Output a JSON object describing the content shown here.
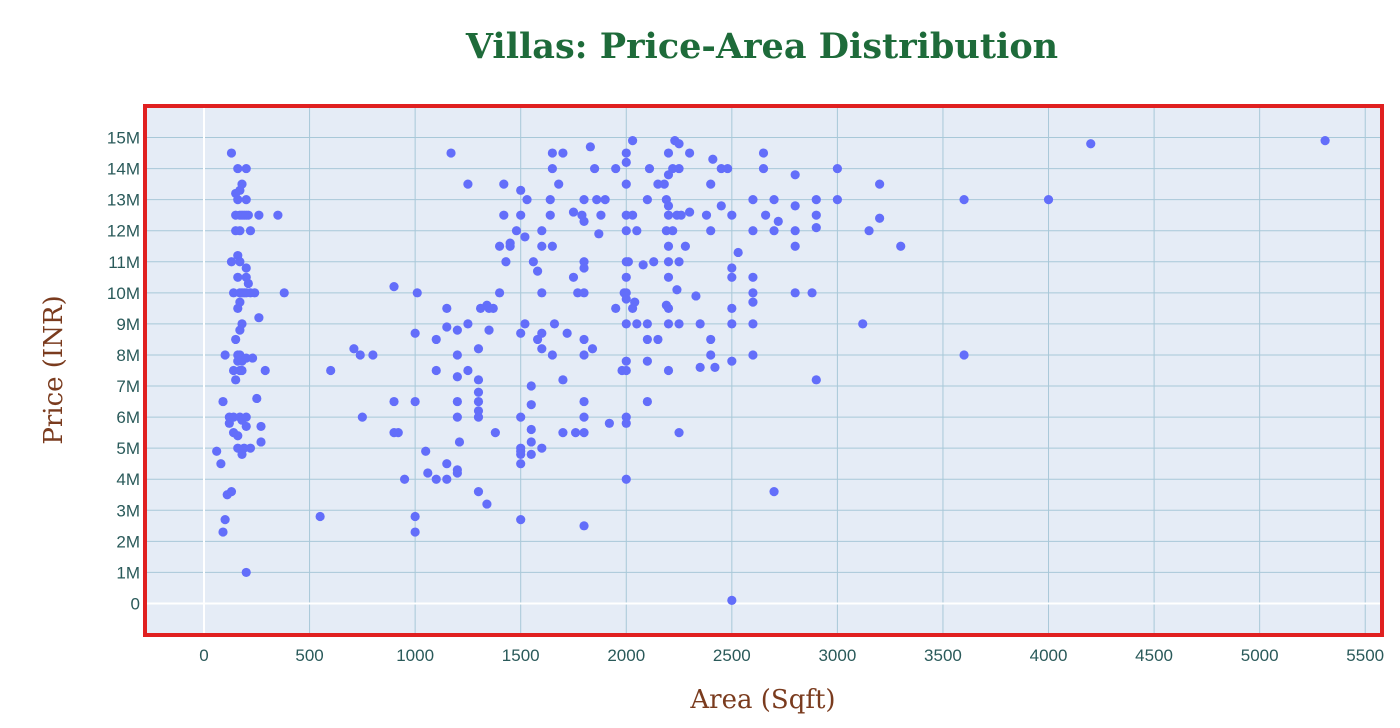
{
  "chart_data": {
    "type": "scatter",
    "title": "Villas: Price-Area Distribution",
    "xlabel": "Area (Sqft)",
    "ylabel": "Price (INR)",
    "xlim": [
      -270,
      5570
    ],
    "ylim": [
      -950000,
      15950000
    ],
    "grid": true,
    "x_ticks": [
      0,
      500,
      1000,
      1500,
      2000,
      2500,
      3000,
      3500,
      4000,
      4500,
      5000,
      5500
    ],
    "x_tick_labels": [
      "0",
      "500",
      "1000",
      "1500",
      "2000",
      "2500",
      "3000",
      "3500",
      "4000",
      "4500",
      "5000",
      "5500"
    ],
    "y_ticks": [
      0,
      1000000,
      2000000,
      3000000,
      4000000,
      5000000,
      6000000,
      7000000,
      8000000,
      9000000,
      10000000,
      11000000,
      12000000,
      13000000,
      14000000,
      15000000
    ],
    "y_tick_labels": [
      "0",
      "1M",
      "2M",
      "3M",
      "4M",
      "5M",
      "6M",
      "7M",
      "8M",
      "9M",
      "10M",
      "11M",
      "12M",
      "13M",
      "14M",
      "15M"
    ],
    "colors": {
      "marker": "#636efa",
      "plot_bg": "#e5ecf6",
      "grid": "#a8c8d8",
      "title": "#1e6b3a",
      "axis_label": "#7a3b1e",
      "tick": "#2a5a5a",
      "frame": "#e02020"
    },
    "points": [
      [
        60,
        4900000
      ],
      [
        80,
        4500000
      ],
      [
        90,
        6500000
      ],
      [
        90,
        2300000
      ],
      [
        100,
        2700000
      ],
      [
        100,
        8000000
      ],
      [
        110,
        3500000
      ],
      [
        120,
        6000000
      ],
      [
        120,
        5800000
      ],
      [
        130,
        3600000
      ],
      [
        130,
        11000000
      ],
      [
        130,
        14500000
      ],
      [
        140,
        7500000
      ],
      [
        140,
        6000000
      ],
      [
        140,
        5500000
      ],
      [
        140,
        10000000
      ],
      [
        150,
        13200000
      ],
      [
        150,
        12000000
      ],
      [
        150,
        12500000
      ],
      [
        150,
        8500000
      ],
      [
        150,
        7200000
      ],
      [
        160,
        14000000
      ],
      [
        160,
        13000000
      ],
      [
        160,
        11200000
      ],
      [
        160,
        10500000
      ],
      [
        160,
        9500000
      ],
      [
        160,
        8000000
      ],
      [
        160,
        7800000
      ],
      [
        160,
        5400000
      ],
      [
        160,
        5000000
      ],
      [
        170,
        13300000
      ],
      [
        170,
        12500000
      ],
      [
        170,
        12000000
      ],
      [
        170,
        11000000
      ],
      [
        170,
        10000000
      ],
      [
        170,
        9700000
      ],
      [
        170,
        8800000
      ],
      [
        170,
        8000000
      ],
      [
        170,
        7500000
      ],
      [
        170,
        6000000
      ],
      [
        180,
        13500000
      ],
      [
        180,
        12500000
      ],
      [
        180,
        10000000
      ],
      [
        180,
        9000000
      ],
      [
        180,
        7800000
      ],
      [
        180,
        7500000
      ],
      [
        180,
        5900000
      ],
      [
        180,
        4800000
      ],
      [
        190,
        12500000
      ],
      [
        190,
        10000000
      ],
      [
        190,
        5000000
      ],
      [
        200,
        14000000
      ],
      [
        200,
        13000000
      ],
      [
        200,
        12500000
      ],
      [
        200,
        10800000
      ],
      [
        200,
        10500000
      ],
      [
        200,
        10000000
      ],
      [
        200,
        7900000
      ],
      [
        200,
        6000000
      ],
      [
        200,
        5700000
      ],
      [
        200,
        1000000
      ],
      [
        210,
        12500000
      ],
      [
        210,
        10300000
      ],
      [
        220,
        12000000
      ],
      [
        220,
        10000000
      ],
      [
        220,
        5000000
      ],
      [
        230,
        7900000
      ],
      [
        240,
        10000000
      ],
      [
        250,
        6600000
      ],
      [
        260,
        9200000
      ],
      [
        260,
        12500000
      ],
      [
        270,
        5700000
      ],
      [
        270,
        5200000
      ],
      [
        290,
        7500000
      ],
      [
        350,
        12500000
      ],
      [
        380,
        10000000
      ],
      [
        550,
        2800000
      ],
      [
        600,
        7500000
      ],
      [
        710,
        8200000
      ],
      [
        740,
        8000000
      ],
      [
        750,
        6000000
      ],
      [
        800,
        8000000
      ],
      [
        900,
        10200000
      ],
      [
        900,
        6500000
      ],
      [
        900,
        5500000
      ],
      [
        920,
        5500000
      ],
      [
        950,
        4000000
      ],
      [
        1000,
        6500000
      ],
      [
        1000,
        2800000
      ],
      [
        1000,
        2300000
      ],
      [
        1000,
        8700000
      ],
      [
        1010,
        10000000
      ],
      [
        1050,
        4900000
      ],
      [
        1060,
        4200000
      ],
      [
        1100,
        7500000
      ],
      [
        1100,
        8500000
      ],
      [
        1100,
        4000000
      ],
      [
        1150,
        9500000
      ],
      [
        1150,
        8900000
      ],
      [
        1150,
        4500000
      ],
      [
        1150,
        4000000
      ],
      [
        1170,
        14500000
      ],
      [
        1200,
        8800000
      ],
      [
        1200,
        8000000
      ],
      [
        1200,
        7300000
      ],
      [
        1200,
        6500000
      ],
      [
        1200,
        6000000
      ],
      [
        1200,
        4200000
      ],
      [
        1200,
        4300000
      ],
      [
        1210,
        5200000
      ],
      [
        1250,
        13500000
      ],
      [
        1250,
        9000000
      ],
      [
        1250,
        7500000
      ],
      [
        1300,
        8200000
      ],
      [
        1300,
        7200000
      ],
      [
        1300,
        6500000
      ],
      [
        1300,
        6200000
      ],
      [
        1300,
        6000000
      ],
      [
        1300,
        3600000
      ],
      [
        1310,
        9500000
      ],
      [
        1300,
        6800000
      ],
      [
        1340,
        9600000
      ],
      [
        1340,
        3200000
      ],
      [
        1350,
        8800000
      ],
      [
        1350,
        9500000
      ],
      [
        1370,
        9500000
      ],
      [
        1380,
        5500000
      ],
      [
        1400,
        10000000
      ],
      [
        1400,
        11500000
      ],
      [
        1420,
        13500000
      ],
      [
        1420,
        12500000
      ],
      [
        1430,
        11000000
      ],
      [
        1450,
        11500000
      ],
      [
        1450,
        11600000
      ],
      [
        1480,
        12000000
      ],
      [
        1500,
        13300000
      ],
      [
        1500,
        12500000
      ],
      [
        1500,
        8700000
      ],
      [
        1500,
        6000000
      ],
      [
        1500,
        5000000
      ],
      [
        1500,
        4800000
      ],
      [
        1500,
        4500000
      ],
      [
        1500,
        2700000
      ],
      [
        1500,
        4900000
      ],
      [
        1520,
        11800000
      ],
      [
        1520,
        9000000
      ],
      [
        1530,
        13000000
      ],
      [
        1550,
        7000000
      ],
      [
        1550,
        6400000
      ],
      [
        1550,
        5600000
      ],
      [
        1550,
        5200000
      ],
      [
        1550,
        4800000
      ],
      [
        1560,
        11000000
      ],
      [
        1580,
        10700000
      ],
      [
        1580,
        8500000
      ],
      [
        1600,
        12000000
      ],
      [
        1600,
        11500000
      ],
      [
        1600,
        10000000
      ],
      [
        1600,
        8700000
      ],
      [
        1600,
        8200000
      ],
      [
        1600,
        5000000
      ],
      [
        1640,
        13000000
      ],
      [
        1640,
        12500000
      ],
      [
        1650,
        14500000
      ],
      [
        1650,
        14000000
      ],
      [
        1650,
        11500000
      ],
      [
        1660,
        9000000
      ],
      [
        1650,
        8000000
      ],
      [
        1680,
        13500000
      ],
      [
        1700,
        14500000
      ],
      [
        1700,
        7200000
      ],
      [
        1700,
        5500000
      ],
      [
        1720,
        8700000
      ],
      [
        1750,
        12600000
      ],
      [
        1750,
        10500000
      ],
      [
        1760,
        5500000
      ],
      [
        1770,
        10000000
      ],
      [
        1790,
        12500000
      ],
      [
        1800,
        13000000
      ],
      [
        1800,
        12300000
      ],
      [
        1800,
        11000000
      ],
      [
        1800,
        10800000
      ],
      [
        1800,
        10000000
      ],
      [
        1800,
        8500000
      ],
      [
        1800,
        8000000
      ],
      [
        1800,
        6500000
      ],
      [
        1800,
        6000000
      ],
      [
        1800,
        5500000
      ],
      [
        1800,
        2500000
      ],
      [
        1830,
        14700000
      ],
      [
        1850,
        14000000
      ],
      [
        1840,
        8200000
      ],
      [
        1860,
        13000000
      ],
      [
        1870,
        11900000
      ],
      [
        1880,
        12500000
      ],
      [
        1900,
        13000000
      ],
      [
        1920,
        5800000
      ],
      [
        1950,
        9500000
      ],
      [
        1950,
        14000000
      ],
      [
        1980,
        7500000
      ],
      [
        1990,
        10000000
      ],
      [
        2000,
        14500000
      ],
      [
        2000,
        14200000
      ],
      [
        2000,
        13500000
      ],
      [
        2000,
        12500000
      ],
      [
        2000,
        12000000
      ],
      [
        2000,
        11000000
      ],
      [
        2000,
        10500000
      ],
      [
        2000,
        10000000
      ],
      [
        2000,
        9800000
      ],
      [
        2000,
        9000000
      ],
      [
        2000,
        7800000
      ],
      [
        2000,
        7500000
      ],
      [
        2000,
        6000000
      ],
      [
        2000,
        5800000
      ],
      [
        2000,
        4000000
      ],
      [
        2010,
        11000000
      ],
      [
        2030,
        14900000
      ],
      [
        2030,
        12500000
      ],
      [
        2030,
        9500000
      ],
      [
        2040,
        9700000
      ],
      [
        2050,
        12000000
      ],
      [
        2050,
        9000000
      ],
      [
        2080,
        10900000
      ],
      [
        2100,
        13000000
      ],
      [
        2100,
        9000000
      ],
      [
        2100,
        8500000
      ],
      [
        2100,
        7800000
      ],
      [
        2100,
        6500000
      ],
      [
        2110,
        14000000
      ],
      [
        2130,
        11000000
      ],
      [
        2150,
        13500000
      ],
      [
        2150,
        8500000
      ],
      [
        2180,
        13500000
      ],
      [
        2190,
        13000000
      ],
      [
        2190,
        12000000
      ],
      [
        2190,
        9600000
      ],
      [
        2200,
        14500000
      ],
      [
        2200,
        13800000
      ],
      [
        2200,
        12800000
      ],
      [
        2200,
        12500000
      ],
      [
        2200,
        11500000
      ],
      [
        2200,
        11000000
      ],
      [
        2200,
        10500000
      ],
      [
        2200,
        9500000
      ],
      [
        2200,
        9000000
      ],
      [
        2200,
        7500000
      ],
      [
        2220,
        14000000
      ],
      [
        2220,
        12000000
      ],
      [
        2230,
        14900000
      ],
      [
        2240,
        12500000
      ],
      [
        2240,
        10100000
      ],
      [
        2250,
        14800000
      ],
      [
        2250,
        14000000
      ],
      [
        2250,
        11000000
      ],
      [
        2250,
        9000000
      ],
      [
        2250,
        5500000
      ],
      [
        2260,
        12500000
      ],
      [
        2280,
        11500000
      ],
      [
        2300,
        14500000
      ],
      [
        2300,
        12600000
      ],
      [
        2330,
        9900000
      ],
      [
        2350,
        9000000
      ],
      [
        2350,
        7600000
      ],
      [
        2380,
        12500000
      ],
      [
        2400,
        13500000
      ],
      [
        2400,
        12000000
      ],
      [
        2400,
        8500000
      ],
      [
        2400,
        8000000
      ],
      [
        2410,
        14300000
      ],
      [
        2420,
        7600000
      ],
      [
        2450,
        14000000
      ],
      [
        2450,
        12800000
      ],
      [
        2480,
        14000000
      ],
      [
        2500,
        12500000
      ],
      [
        2500,
        10800000
      ],
      [
        2500,
        10500000
      ],
      [
        2500,
        9500000
      ],
      [
        2500,
        9000000
      ],
      [
        2500,
        7800000
      ],
      [
        2500,
        100000
      ],
      [
        2530,
        11300000
      ],
      [
        2600,
        13000000
      ],
      [
        2600,
        12000000
      ],
      [
        2600,
        10500000
      ],
      [
        2600,
        10000000
      ],
      [
        2600,
        9700000
      ],
      [
        2600,
        9000000
      ],
      [
        2600,
        8000000
      ],
      [
        2650,
        14500000
      ],
      [
        2650,
        14000000
      ],
      [
        2660,
        12500000
      ],
      [
        2700,
        13000000
      ],
      [
        2700,
        12000000
      ],
      [
        2700,
        3600000
      ],
      [
        2720,
        12300000
      ],
      [
        2800,
        13800000
      ],
      [
        2800,
        12800000
      ],
      [
        2800,
        12000000
      ],
      [
        2800,
        11500000
      ],
      [
        2800,
        10000000
      ],
      [
        2880,
        10000000
      ],
      [
        2900,
        13000000
      ],
      [
        2900,
        12500000
      ],
      [
        2900,
        12100000
      ],
      [
        2900,
        7200000
      ],
      [
        3000,
        14000000
      ],
      [
        3000,
        13000000
      ],
      [
        3120,
        9000000
      ],
      [
        3150,
        12000000
      ],
      [
        3200,
        13500000
      ],
      [
        3200,
        12400000
      ],
      [
        3300,
        11500000
      ],
      [
        3600,
        13000000
      ],
      [
        3600,
        8000000
      ],
      [
        4000,
        13000000
      ],
      [
        4200,
        14800000
      ],
      [
        5310,
        14900000
      ]
    ]
  }
}
